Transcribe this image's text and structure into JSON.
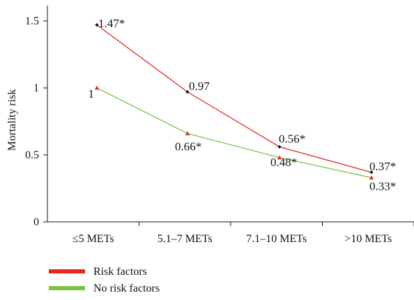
{
  "chart_data": {
    "type": "line",
    "categories": [
      "≤5 METs",
      "5.1–7 METs",
      "7.1–10 METs",
      ">10 METs"
    ],
    "ylabel": "Mortality risk",
    "xlabel": "",
    "ylim": [
      0,
      1.5
    ],
    "yticks": [
      0,
      0.5,
      1,
      1.5
    ],
    "ytick_labels": [
      "0",
      "0.5",
      "1",
      "1.5"
    ],
    "grid": false,
    "legend_position": "bottom-left",
    "series": [
      {
        "name": "Risk factors",
        "color": "#e8251f",
        "marker_color": "#111111",
        "marker": "diamond",
        "values": [
          1.47,
          0.97,
          0.56,
          0.37
        ],
        "labels": [
          "1.47*",
          "0.97",
          "0.56*",
          "0.37*"
        ]
      },
      {
        "name": "No risk factors",
        "color": "#7cc242",
        "marker_color": "#e8251f",
        "marker": "triangle",
        "values": [
          1.0,
          0.66,
          0.48,
          0.33
        ],
        "labels": [
          "1",
          "0.66*",
          "0.48*",
          "0.33*"
        ]
      }
    ]
  }
}
